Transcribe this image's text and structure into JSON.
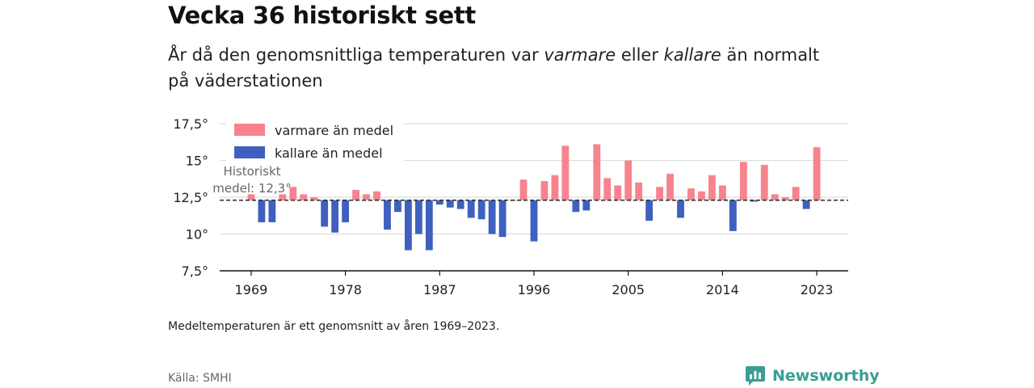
{
  "title": "Vecka 36 historiskt sett",
  "subtitle": {
    "part1": "År då den genomsnittliga temperaturen var ",
    "em1": "varmare",
    "part2": " eller ",
    "em2": "kallare",
    "part3": " än normalt",
    "line2": "på väderstationen"
  },
  "footnote": "Medeltemperaturen är ett genomsnitt av åren 1969–2023.",
  "source": "Källa: SMHI",
  "brand": {
    "name": "Newsworthy",
    "icon": "newsworthy-logo-icon",
    "color": "#3a9e92"
  },
  "chart_data": {
    "type": "bar",
    "baseline": 12.3,
    "baseline_label": [
      "Historiskt",
      "medel: 12,3°"
    ],
    "ylim": [
      7.5,
      17.5
    ],
    "yticks": [
      7.5,
      10,
      12.5,
      15,
      17.5
    ],
    "ytick_labels": [
      "7,5°",
      "10°",
      "12,5°",
      "15°",
      "17,5°"
    ],
    "xlim": [
      1966,
      2026
    ],
    "xticks": [
      1969,
      1978,
      1987,
      1996,
      2005,
      2014,
      2023
    ],
    "xtick_labels": [
      "1969",
      "1978",
      "1987",
      "1996",
      "2005",
      "2014",
      "2023"
    ],
    "grid": true,
    "legend": [
      {
        "label": "varmare än medel",
        "color": "#f7838f"
      },
      {
        "label": "kallare än medel",
        "color": "#3f60bf"
      }
    ],
    "legend_position": "top-left",
    "colors": {
      "warm": "#f7838f",
      "cold": "#3f60bf",
      "baseline": "#333333"
    },
    "x": [
      1969,
      1970,
      1971,
      1972,
      1973,
      1974,
      1975,
      1976,
      1977,
      1978,
      1979,
      1980,
      1981,
      1982,
      1983,
      1984,
      1985,
      1986,
      1987,
      1988,
      1989,
      1990,
      1991,
      1992,
      1993,
      1994,
      1995,
      1996,
      1997,
      1998,
      1999,
      2000,
      2001,
      2002,
      2003,
      2004,
      2005,
      2006,
      2007,
      2008,
      2009,
      2010,
      2011,
      2012,
      2013,
      2014,
      2015,
      2016,
      2017,
      2018,
      2019,
      2020,
      2021,
      2022,
      2023
    ],
    "values": [
      12.7,
      10.8,
      10.8,
      12.7,
      13.2,
      12.7,
      12.5,
      10.5,
      10.1,
      10.8,
      13.0,
      12.7,
      12.9,
      10.3,
      11.5,
      8.9,
      10.0,
      8.9,
      12.0,
      11.8,
      11.7,
      11.1,
      11.0,
      10.0,
      9.8,
      12.3,
      13.7,
      9.5,
      13.6,
      14.0,
      16.0,
      11.5,
      11.6,
      16.1,
      13.8,
      13.3,
      15.0,
      13.5,
      10.9,
      13.2,
      14.1,
      11.1,
      13.1,
      12.9,
      14.0,
      13.3,
      10.2,
      14.9,
      12.2,
      14.7,
      12.7,
      12.5,
      13.2,
      11.7,
      15.9
    ]
  }
}
